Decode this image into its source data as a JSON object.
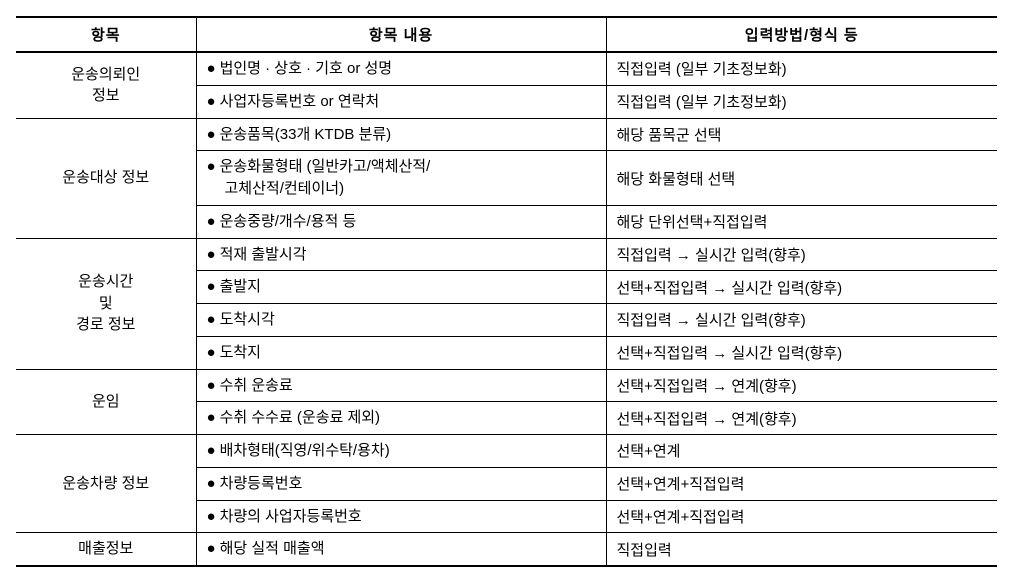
{
  "headers": {
    "category": "항목",
    "content": "항목 내용",
    "method": "입력방법/형식 등"
  },
  "groups": [
    {
      "category": "운송의뢰인\n정보",
      "rows": [
        {
          "content": "법인명 · 상호 · 기호 or 성명",
          "method": "직접입력 (일부 기초정보화)"
        },
        {
          "content": "사업자등록번호 or 연락처",
          "method": "직접입력 (일부 기초정보화)"
        }
      ]
    },
    {
      "category": "운송대상 정보",
      "rows": [
        {
          "content": "운송품목(33개 KTDB 분류)",
          "method": "해당 품목군 선택"
        },
        {
          "content": "운송화물형태 (일반카고/액체산적/\n고체산적/컨테이너)",
          "method": "해당 화물형태 선택"
        },
        {
          "content": "운송중량/개수/용적 등",
          "method": "해당 단위선택+직접입력"
        }
      ]
    },
    {
      "category": "운송시간\n및\n경로 정보",
      "rows": [
        {
          "content": "적재 출발시각",
          "method": "직접입력 → 실시간 입력(향후)"
        },
        {
          "content": "출발지",
          "method": "선택+직접입력 → 실시간 입력(향후)"
        },
        {
          "content": "도착시각",
          "method": "직접입력 → 실시간 입력(향후)"
        },
        {
          "content": "도착지",
          "method": "선택+직접입력 → 실시간 입력(향후)"
        }
      ]
    },
    {
      "category": "운임",
      "rows": [
        {
          "content": "수취 운송료",
          "method": "선택+직접입력 → 연계(향후)"
        },
        {
          "content": "수취 수수료 (운송료 제외)",
          "method": "선택+직접입력 → 연계(향후)"
        }
      ]
    },
    {
      "category": "운송차량 정보",
      "rows": [
        {
          "content": "배차형태(직영/위수탁/용차)",
          "method": "선택+연계"
        },
        {
          "content": "차량등록번호",
          "method": "선택+연계+직접입력"
        },
        {
          "content": "차량의 사업자등록번호",
          "method": "선택+연계+직접입력"
        }
      ]
    },
    {
      "category": "매출정보",
      "rows": [
        {
          "content": "해당 실적 매출액",
          "method": "직접입력"
        }
      ]
    }
  ],
  "style": {
    "bullet": "●",
    "text_color": "#000000",
    "bg_color": "#ffffff",
    "border_color": "#000000",
    "font_size_pt": 11
  }
}
